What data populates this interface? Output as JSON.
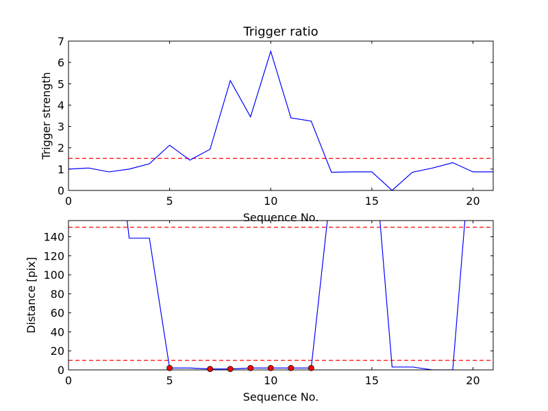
{
  "chart_data": [
    {
      "type": "line",
      "title": "Trigger ratio",
      "xlabel": "Sequence No.",
      "ylabel": "Trigger strength",
      "xlim": [
        0,
        21
      ],
      "ylim": [
        0,
        7
      ],
      "xticks": [
        0,
        5,
        10,
        15,
        20
      ],
      "yticks": [
        0,
        1,
        2,
        3,
        4,
        5,
        6,
        7
      ],
      "grid": false,
      "line_color": "#0000ff",
      "threshold_color": "#ff0000",
      "series": [
        {
          "x": [
            0,
            1,
            2,
            3,
            4,
            5,
            6,
            7,
            8,
            9,
            10,
            11,
            12,
            13,
            14,
            15,
            16,
            17,
            18,
            19,
            20,
            21
          ],
          "y": [
            1.0,
            1.05,
            0.87,
            1.0,
            1.25,
            2.12,
            1.42,
            1.93,
            5.15,
            3.45,
            6.52,
            3.4,
            3.25,
            0.85,
            0.87,
            0.87,
            0.0,
            0.85,
            1.05,
            1.3,
            0.87,
            0.87
          ]
        }
      ],
      "hlines": [
        1.5
      ]
    },
    {
      "type": "line",
      "title": "",
      "xlabel": "Sequence No.",
      "ylabel": "Distance [pix]",
      "xlim": [
        0,
        21
      ],
      "ylim": [
        0,
        157
      ],
      "xticks": [
        0,
        5,
        10,
        15,
        20
      ],
      "yticks": [
        0,
        20,
        40,
        60,
        80,
        100,
        120,
        140
      ],
      "grid": false,
      "line_color": "#0000ff",
      "threshold_color": "#ff0000",
      "marker_color": "#ff0000",
      "series": [
        {
          "x": [
            2.9,
            3,
            4,
            5,
            6,
            7,
            8,
            9,
            10,
            11,
            12,
            12.8,
            12.82
          ],
          "y": [
            157,
            138.5,
            138.5,
            2,
            2,
            1,
            1,
            2,
            2,
            2,
            2,
            157,
            157
          ]
        },
        {
          "x": [
            15.4,
            16,
            17,
            18,
            19,
            19.6
          ],
          "y": [
            157,
            3,
            3,
            0,
            0,
            157
          ]
        }
      ],
      "markers": {
        "x": [
          5,
          7,
          8,
          9,
          10,
          11,
          12
        ],
        "y": [
          2,
          1,
          1,
          2,
          2,
          2,
          2
        ]
      },
      "hlines": [
        10,
        150
      ]
    }
  ]
}
